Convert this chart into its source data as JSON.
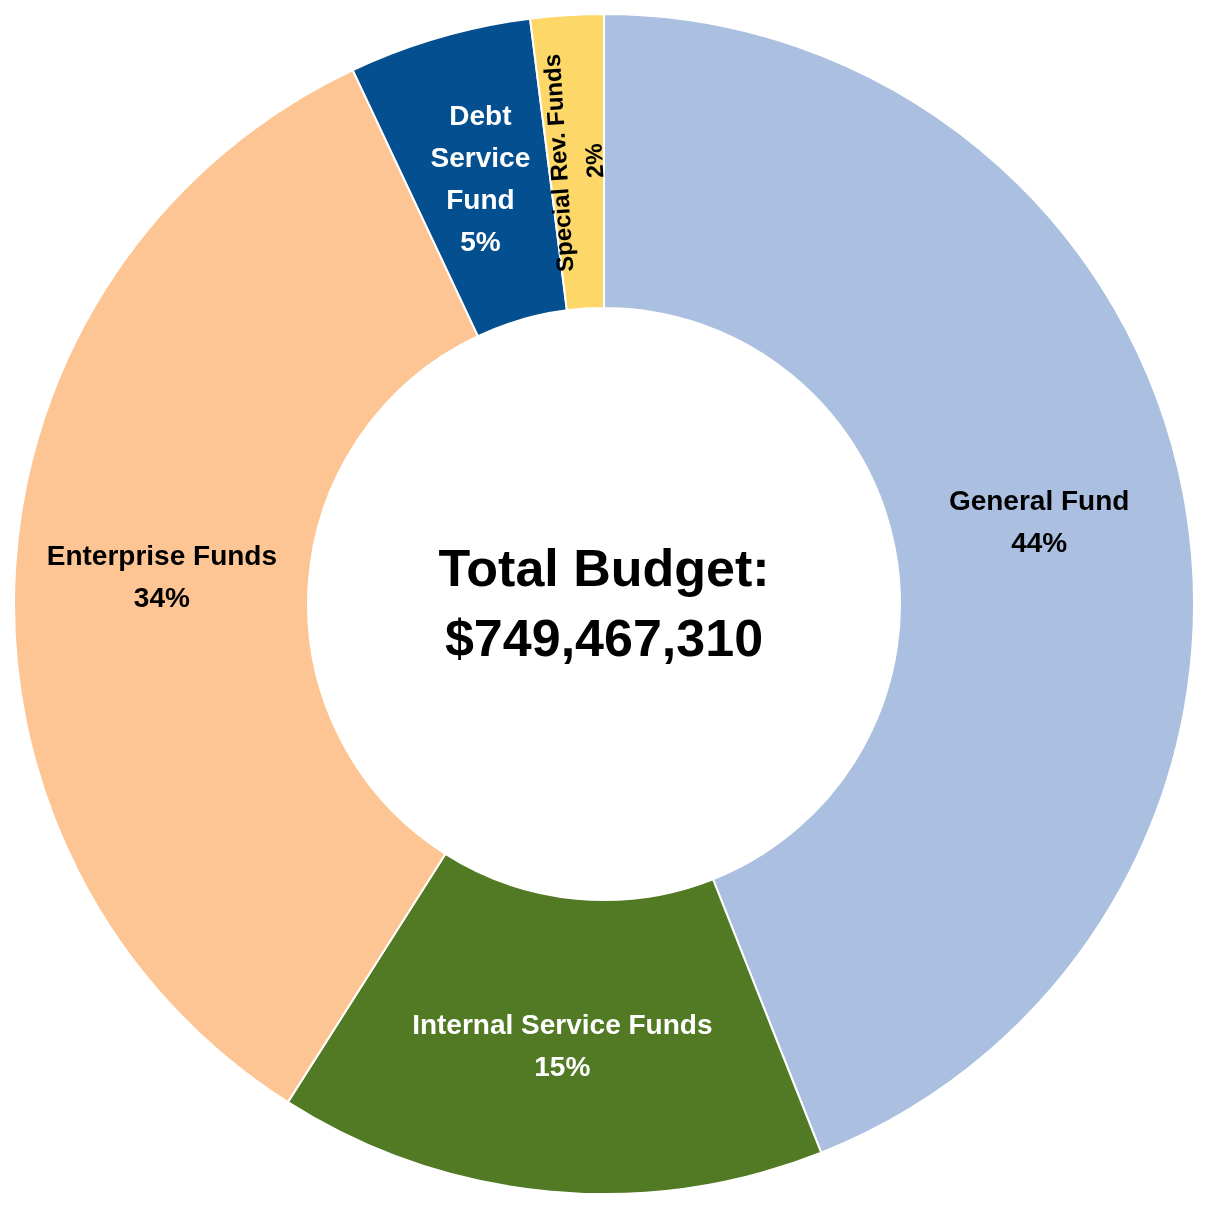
{
  "chart_data": {
    "type": "donut",
    "title": "Total Budget:",
    "subtitle": "$749,467,310",
    "categories": [
      "General Fund",
      "Internal Service Funds",
      "Enterprise Funds",
      "Debt Service Fund",
      "Special Rev. Funds"
    ],
    "values": [
      44,
      15,
      34,
      5,
      2
    ],
    "colors": [
      "#abc0e0",
      "#527a24",
      "#fdc594",
      "#034f8f",
      "#fdd868"
    ],
    "value_labels": [
      "44%",
      "15%",
      "34%",
      "5%",
      "2%"
    ]
  }
}
